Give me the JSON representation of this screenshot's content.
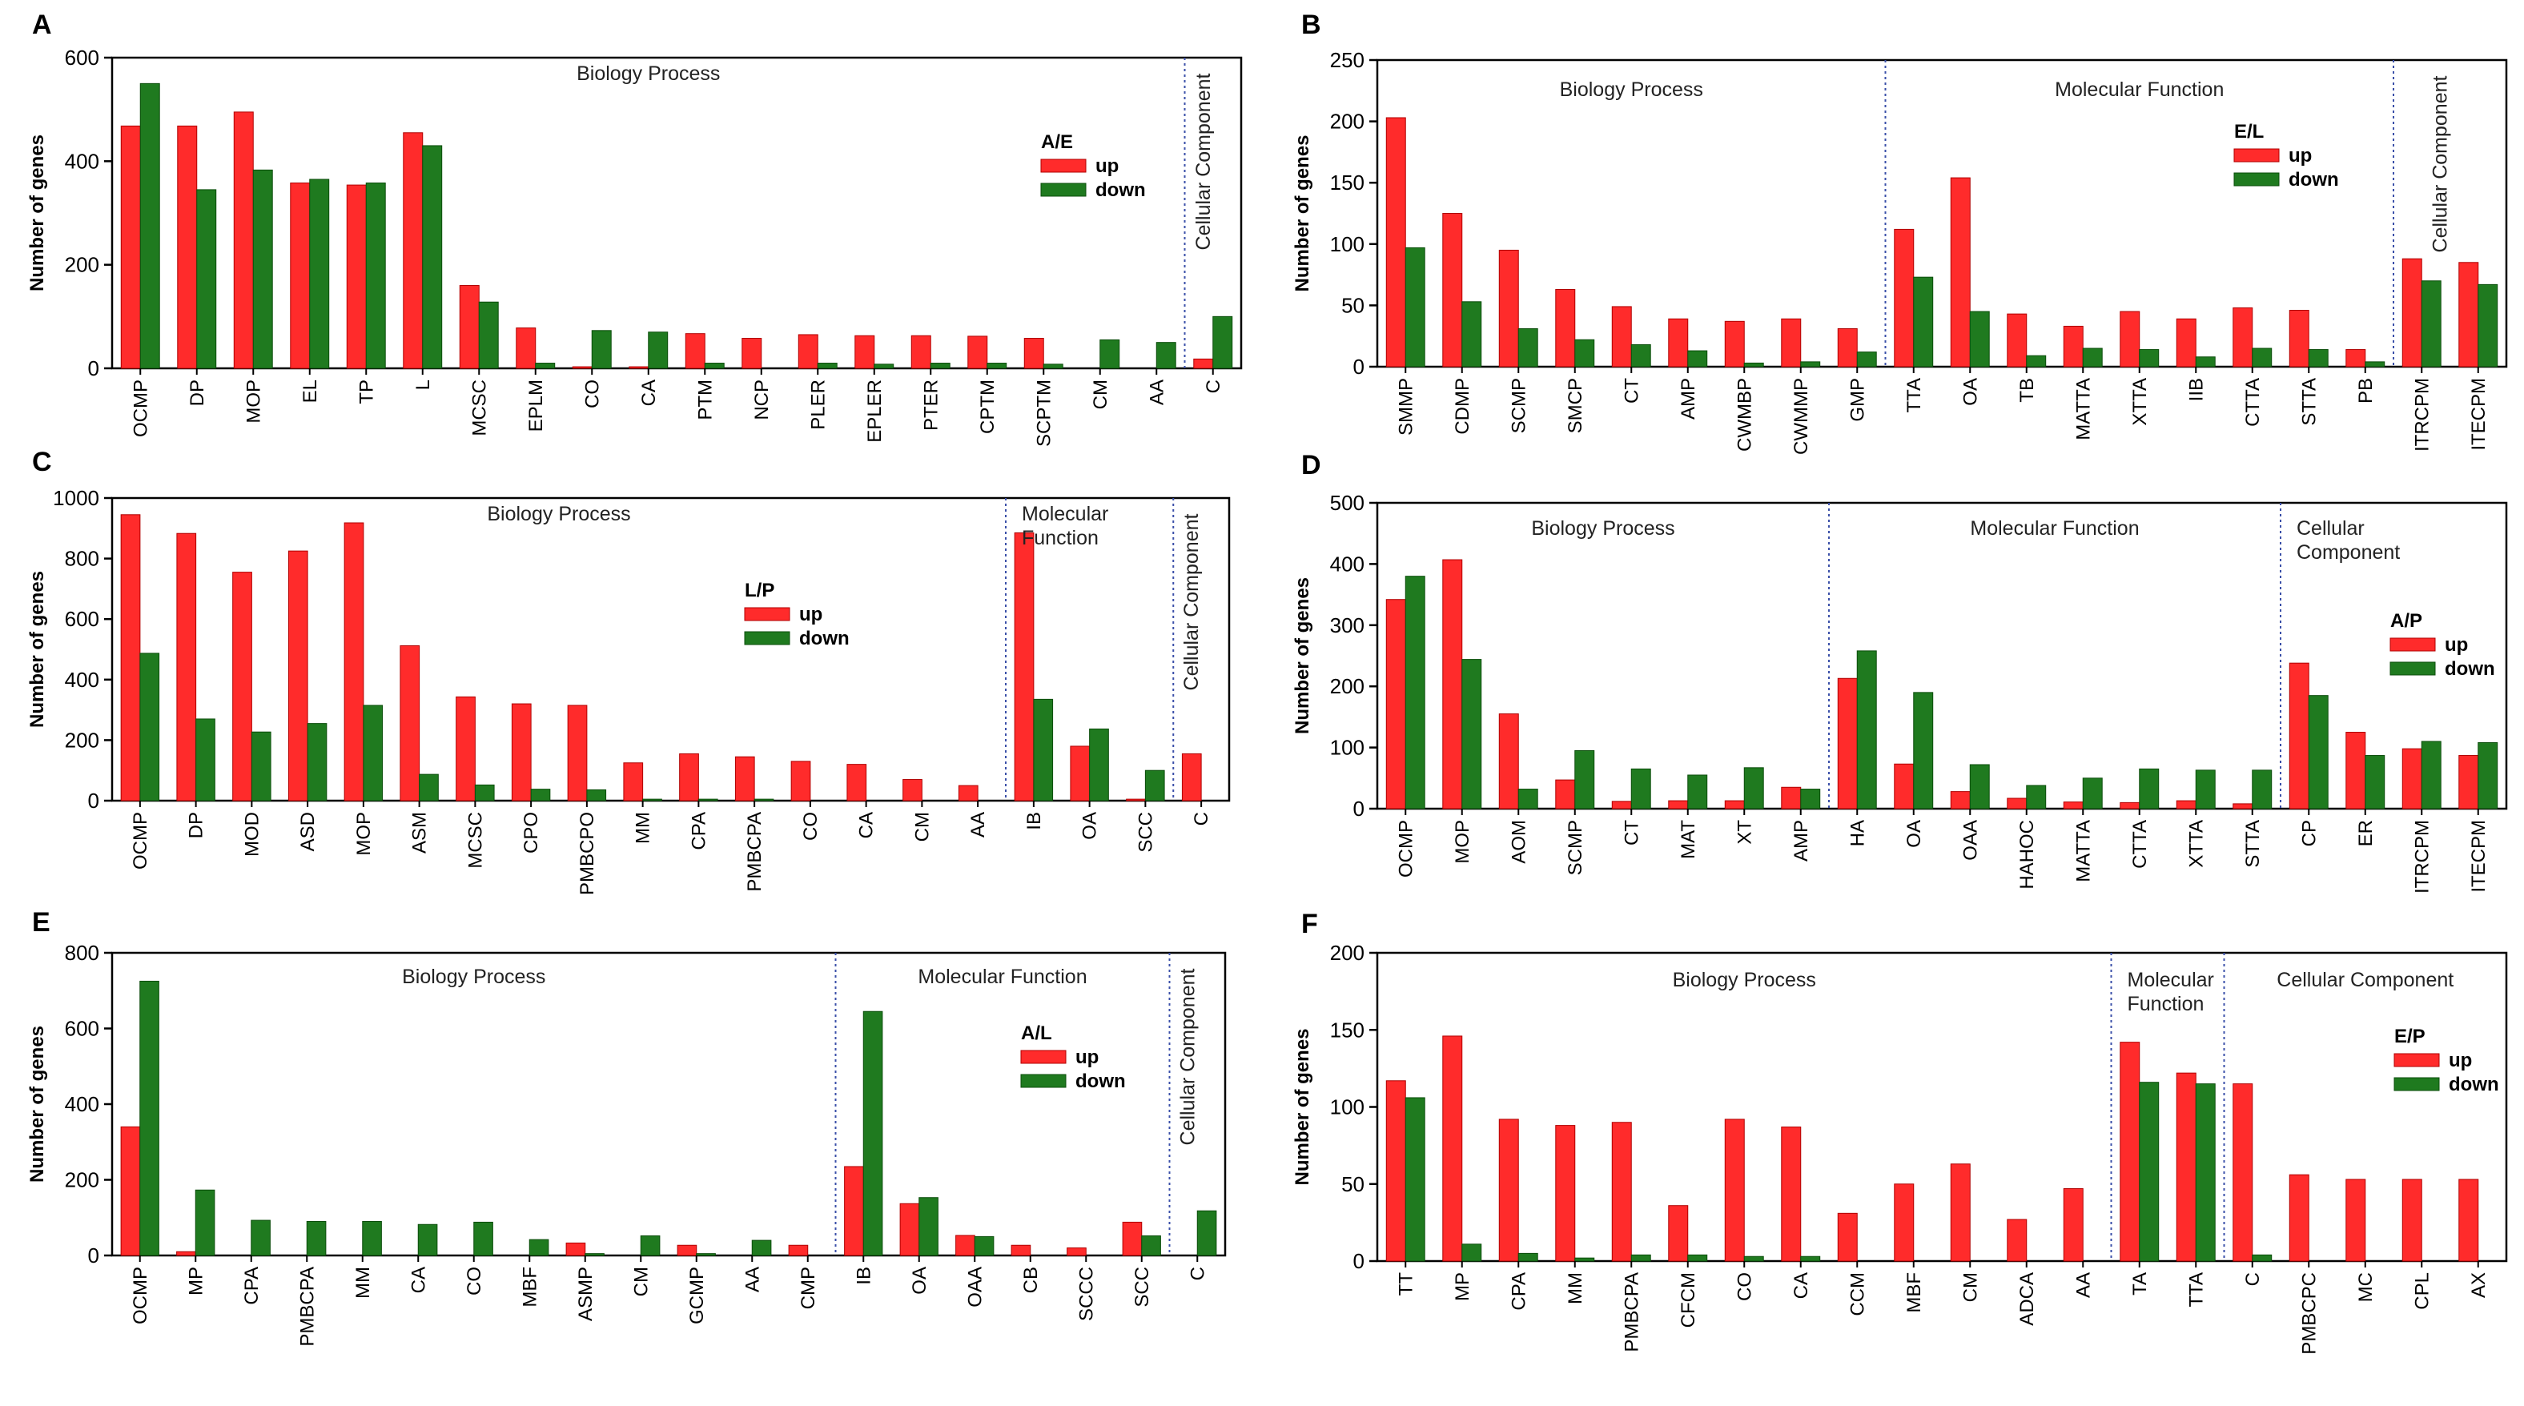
{
  "colors": {
    "up": "#ff2b2b",
    "down": "#1f7a1f",
    "up_edge": "#b00000",
    "down_edge": "#0b4d0b",
    "divider": "#3a4fa8"
  },
  "chart_data": [
    {
      "panel": "A",
      "type": "bar",
      "ylabel": "Number of genes",
      "ylim": [
        0,
        600
      ],
      "yticks": [
        0,
        200,
        400,
        600
      ],
      "legend": {
        "title": "A/E",
        "up": "up",
        "down": "down"
      },
      "categories": [
        "OCMP",
        "DP",
        "MOP",
        "EL",
        "TP",
        "L",
        "MCSC",
        "EPLM",
        "CO",
        "CA",
        "PTM",
        "NCP",
        "PLER",
        "EPLER",
        "PTER",
        "CPTM",
        "SCPTM",
        "CM",
        "AA",
        "C"
      ],
      "series": [
        {
          "name": "up",
          "values": [
            468,
            468,
            495,
            358,
            354,
            455,
            160,
            78,
            3,
            3,
            67,
            58,
            65,
            63,
            63,
            62,
            58,
            0,
            0,
            18
          ]
        },
        {
          "name": "down",
          "values": [
            550,
            345,
            383,
            365,
            358,
            430,
            128,
            10,
            73,
            70,
            10,
            0,
            10,
            8,
            10,
            10,
            8,
            55,
            50,
            100
          ]
        }
      ],
      "sections": [
        {
          "label": "Biology Process",
          "from": 0,
          "to": 18
        },
        {
          "label": "Cellular Component",
          "from": 19,
          "to": 19,
          "vertical": true
        }
      ]
    },
    {
      "panel": "B",
      "type": "bar",
      "ylabel": "Number of genes",
      "ylim": [
        0,
        250
      ],
      "yticks": [
        0,
        50,
        100,
        150,
        200,
        250
      ],
      "legend": {
        "title": "E/L",
        "up": "up",
        "down": "down"
      },
      "categories": [
        "SMMP",
        "CDMP",
        "SCMP",
        "SMCP",
        "CT",
        "AMP",
        "CWMBP",
        "CWMMP",
        "GMP",
        "TTA",
        "OA",
        "TB",
        "MATTA",
        "XTTA",
        "IIB",
        "CTTA",
        "STTA",
        "PB",
        "ITRCPM",
        "ITECPM"
      ],
      "series": [
        {
          "name": "up",
          "values": [
            203,
            125,
            95,
            63,
            49,
            39,
            37,
            39,
            31,
            112,
            154,
            43,
            33,
            45,
            39,
            48,
            46,
            14,
            88,
            85
          ]
        },
        {
          "name": "down",
          "values": [
            97,
            53,
            31,
            22,
            18,
            13,
            3,
            4,
            12,
            73,
            45,
            9,
            15,
            14,
            8,
            15,
            14,
            4,
            70,
            67
          ]
        }
      ],
      "sections": [
        {
          "label": "Biology Process",
          "from": 0,
          "to": 8
        },
        {
          "label": "Molecular Function",
          "from": 9,
          "to": 17
        },
        {
          "label": "Cellular Component",
          "from": 18,
          "to": 19,
          "vertical": true
        }
      ]
    },
    {
      "panel": "C",
      "type": "bar",
      "ylabel": "Number of genes",
      "ylim": [
        0,
        1000
      ],
      "yticks": [
        0,
        200,
        400,
        600,
        800,
        1000
      ],
      "legend": {
        "title": "L/P",
        "up": "up",
        "down": "down"
      },
      "categories": [
        "OCMP",
        "DP",
        "MOD",
        "ASD",
        "MOP",
        "ASM",
        "MCSC",
        "CPO",
        "PMBCPO",
        "MM",
        "CPA",
        "PMBCPA",
        "CO",
        "CA",
        "CM",
        "AA",
        "IB",
        "OA",
        "SCC",
        "C"
      ],
      "series": [
        {
          "name": "up",
          "values": [
            945,
            883,
            755,
            825,
            918,
            512,
            343,
            320,
            315,
            125,
            155,
            145,
            130,
            120,
            70,
            50,
            885,
            180,
            5,
            155
          ]
        },
        {
          "name": "down",
          "values": [
            487,
            270,
            227,
            255,
            315,
            87,
            52,
            38,
            36,
            5,
            5,
            5,
            0,
            0,
            0,
            0,
            335,
            237,
            100,
            0
          ]
        }
      ],
      "sections": [
        {
          "label": "Biology Process",
          "from": 0,
          "to": 15
        },
        {
          "label": "Molecular\nFunction",
          "from": 16,
          "to": 18
        },
        {
          "label": "Cellular Component",
          "from": 19,
          "to": 19,
          "vertical": true
        }
      ]
    },
    {
      "panel": "D",
      "type": "bar",
      "ylabel": "Number of genes",
      "ylim": [
        0,
        500
      ],
      "yticks": [
        0,
        100,
        200,
        300,
        400,
        500
      ],
      "legend": {
        "title": "A/P",
        "up": "up",
        "down": "down"
      },
      "categories": [
        "OCMP",
        "MOP",
        "AOM",
        "SCMP",
        "CT",
        "MAT",
        "XT",
        "AMP",
        "HA",
        "OA",
        "OAA",
        "HAHOC",
        "MATTA",
        "CTTA",
        "XTTA",
        "STTA",
        "CP",
        "ER",
        "ITRCPM",
        "ITECPM"
      ],
      "series": [
        {
          "name": "up",
          "values": [
            342,
            407,
            155,
            47,
            12,
            13,
            13,
            35,
            213,
            73,
            28,
            17,
            11,
            10,
            13,
            8,
            238,
            125,
            98,
            87
          ]
        },
        {
          "name": "down",
          "values": [
            380,
            244,
            32,
            95,
            65,
            55,
            67,
            32,
            258,
            190,
            72,
            38,
            50,
            65,
            63,
            63,
            185,
            87,
            110,
            108
          ]
        }
      ],
      "sections": [
        {
          "label": "Biology Process",
          "from": 0,
          "to": 7
        },
        {
          "label": "Molecular Function",
          "from": 8,
          "to": 15
        },
        {
          "label": "Cellular\nComponent",
          "from": 16,
          "to": 19
        }
      ]
    },
    {
      "panel": "E",
      "type": "bar",
      "ylabel": "Number of genes",
      "ylim": [
        0,
        800
      ],
      "yticks": [
        0,
        200,
        400,
        600,
        800
      ],
      "legend": {
        "title": "A/L",
        "up": "up",
        "down": "down"
      },
      "categories": [
        "OCMP",
        "MP",
        "CPA",
        "PMBCPA",
        "MM",
        "CA",
        "CO",
        "MBF",
        "ASMP",
        "CM",
        "GCMP",
        "AA",
        "CMP",
        "IB",
        "OA",
        "OAA",
        "CB",
        "SCCC",
        "SCC",
        "C"
      ],
      "series": [
        {
          "name": "up",
          "values": [
            340,
            10,
            0,
            0,
            0,
            0,
            0,
            0,
            33,
            0,
            27,
            0,
            27,
            235,
            137,
            53,
            27,
            20,
            88,
            0
          ]
        },
        {
          "name": "down",
          "values": [
            725,
            173,
            93,
            90,
            90,
            82,
            88,
            42,
            5,
            52,
            5,
            40,
            0,
            645,
            153,
            50,
            0,
            0,
            52,
            118
          ]
        }
      ],
      "sections": [
        {
          "label": "Biology Process",
          "from": 0,
          "to": 12
        },
        {
          "label": "Molecular Function",
          "from": 13,
          "to": 18
        },
        {
          "label": "Cellular Component",
          "from": 19,
          "to": 19,
          "vertical": true
        }
      ]
    },
    {
      "panel": "F",
      "type": "bar",
      "ylabel": "Number of genes",
      "ylim": [
        0,
        200
      ],
      "yticks": [
        0,
        50,
        100,
        150,
        200
      ],
      "legend": {
        "title": "E/P",
        "up": "up",
        "down": "down"
      },
      "categories": [
        "TT",
        "MP",
        "CPA",
        "MM",
        "PMBCPA",
        "CFCM",
        "CO",
        "CA",
        "CCM",
        "MBF",
        "CM",
        "ADCA",
        "AA",
        "TA",
        "TTA",
        "C",
        "PMBCPC",
        "MC",
        "CPL",
        "AX"
      ],
      "series": [
        {
          "name": "up",
          "values": [
            117,
            146,
            92,
            88,
            90,
            36,
            92,
            87,
            31,
            50,
            63,
            27,
            47,
            142,
            122,
            115,
            56,
            53,
            53,
            53
          ]
        },
        {
          "name": "down",
          "values": [
            106,
            11,
            5,
            2,
            4,
            4,
            3,
            3,
            0,
            0,
            0,
            0,
            0,
            116,
            115,
            4,
            0,
            0,
            0,
            0
          ]
        }
      ],
      "sections": [
        {
          "label": "Biology Process",
          "from": 0,
          "to": 12
        },
        {
          "label": "Molecular\nFunction",
          "from": 13,
          "to": 14
        },
        {
          "label": "Cellular Component",
          "from": 15,
          "to": 19
        }
      ]
    }
  ]
}
